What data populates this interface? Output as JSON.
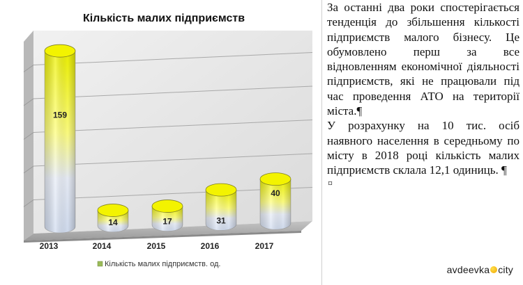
{
  "chart_data": {
    "type": "bar",
    "title": "Кількість малих підприємств",
    "categories": [
      "2013",
      "2014",
      "2015",
      "2016",
      "2017"
    ],
    "values": [
      159,
      14,
      17,
      31,
      40
    ],
    "data_labels": [
      "159",
      "14",
      "17",
      "31",
      "40"
    ],
    "series": [
      {
        "name": "Кількість малих підприємств. од.",
        "values": [
          159,
          14,
          17,
          31,
          40
        ]
      }
    ],
    "ylim": [
      0,
      180
    ],
    "grid": true,
    "legend_position": "bottom",
    "style": "3d-cylinder",
    "colors": {
      "top": "#f3f300",
      "body_top": "#ffff40",
      "body_bottom": "#dbe6f5",
      "legend": "#9bbb59"
    }
  },
  "text": {
    "paragraphs": [
      "За останні два роки спостерігається тенденція до збільшення кількості підприємств малого бізнесу. Це обумовлено перш за все відновленням економічної діяльності підприємств, які не працювали під час проведення АТО на території міста.¶",
      "У розрахунку на 10 тис. осіб наявного населення в середньому по місту в 2018 році кількість малих підприємств склала 12,1 одиниць. ¶"
    ],
    "end_mark": "¤"
  },
  "watermark": {
    "prefix": "avdeevka",
    "suffix": "city"
  }
}
